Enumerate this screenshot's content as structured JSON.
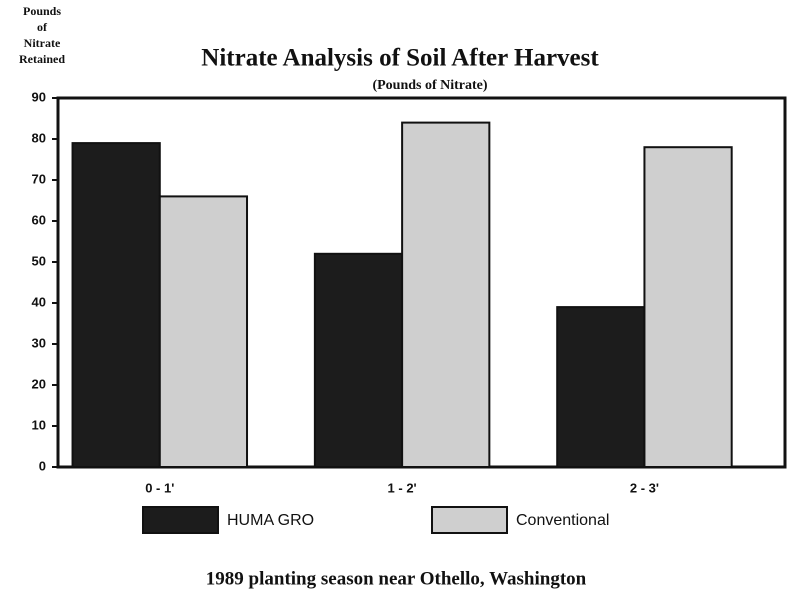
{
  "chart_data": {
    "type": "bar",
    "title": "Nitrate Analysis of Soil After Harvest",
    "subtitle": "(Pounds of Nitrate)",
    "y_label": [
      "Pounds",
      "of",
      "Nitrate",
      "Retained"
    ],
    "footer": "1989 planting season near Othello, Washington",
    "categories": [
      "0 - 1'",
      "1 - 2'",
      "2 - 3'"
    ],
    "series": [
      {
        "name": "HUMA GRO",
        "color": "#1c1c1c",
        "values": [
          79,
          52,
          39
        ]
      },
      {
        "name": "Conventional",
        "color": "#cfcfcf",
        "values": [
          66,
          84,
          78
        ]
      }
    ],
    "ylim": [
      0,
      90
    ],
    "yticks": [
      0,
      10,
      20,
      30,
      40,
      50,
      60,
      70,
      80,
      90
    ]
  }
}
